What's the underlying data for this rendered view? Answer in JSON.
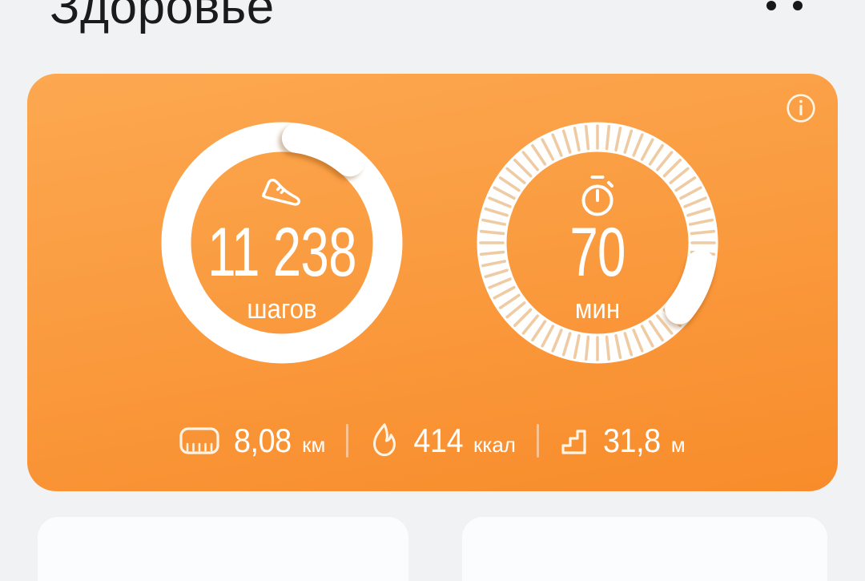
{
  "header": {
    "title": "Здоровье",
    "icons": [
      "header-icon-dot",
      "header-icon-dot"
    ]
  },
  "card": {
    "info_icon": "info-icon",
    "steps": {
      "icon": "shoe-icon",
      "value": "11 238",
      "label": "шагов"
    },
    "minutes": {
      "icon": "stopwatch-icon",
      "value": "70",
      "label": "мин"
    },
    "stats": [
      {
        "icon": "ruler-icon",
        "value": "8,08",
        "unit": "км"
      },
      {
        "icon": "flame-icon",
        "value": "414",
        "unit": "ккал"
      },
      {
        "icon": "stairs-icon",
        "value": "31,8",
        "unit": "м"
      }
    ]
  },
  "colors": {
    "card_gradient_top": "#FCA851",
    "card_gradient_bottom": "#F88C2B",
    "ring": "#FFFFFF",
    "tick": "#EFCBA3",
    "text_on_card": "#FFFFFF",
    "title_text": "#1B1B1B",
    "page_background": "#F0F2F4",
    "bottom_panel": "#FBFCFD"
  }
}
